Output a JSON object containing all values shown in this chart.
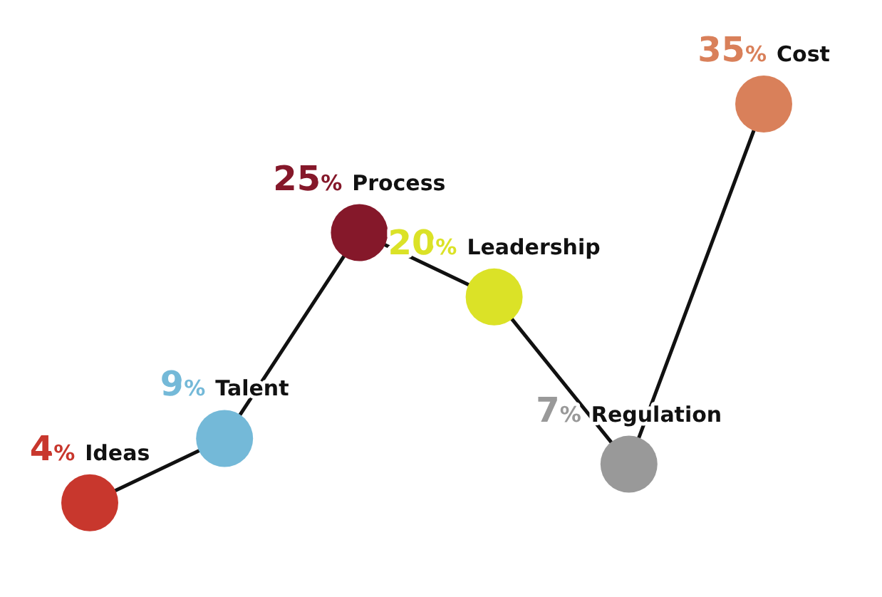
{
  "chart_data": {
    "type": "line",
    "categories": [
      "Ideas",
      "Talent",
      "Process",
      "Leadership",
      "Regulation",
      "Cost"
    ],
    "values": [
      4,
      9,
      25,
      20,
      7,
      35
    ],
    "value_labels": [
      "4%",
      "9%",
      "25%",
      "20%",
      "7%",
      "35%"
    ],
    "color": "#111111",
    "colors": [
      "#c8372d",
      "#74b9d8",
      "#85182a",
      "#dbe227",
      "#999999",
      "#d9805a"
    ],
    "marker": "circle",
    "tick_labels": false,
    "grid": false,
    "legend": false
  }
}
